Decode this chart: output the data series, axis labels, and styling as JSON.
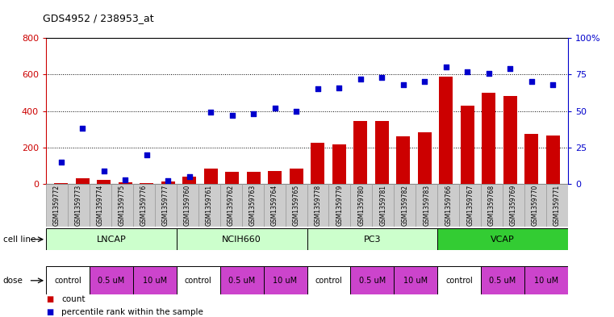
{
  "title": "GDS4952 / 238953_at",
  "samples": [
    "GSM1359772",
    "GSM1359773",
    "GSM1359774",
    "GSM1359775",
    "GSM1359776",
    "GSM1359777",
    "GSM1359760",
    "GSM1359761",
    "GSM1359762",
    "GSM1359763",
    "GSM1359764",
    "GSM1359765",
    "GSM1359778",
    "GSM1359779",
    "GSM1359780",
    "GSM1359781",
    "GSM1359782",
    "GSM1359783",
    "GSM1359766",
    "GSM1359767",
    "GSM1359768",
    "GSM1359769",
    "GSM1359770",
    "GSM1359771"
  ],
  "counts": [
    5,
    30,
    20,
    10,
    5,
    15,
    40,
    85,
    65,
    65,
    70,
    85,
    225,
    215,
    345,
    345,
    260,
    285,
    590,
    430,
    500,
    480,
    275,
    265
  ],
  "percentile_ranks": [
    15,
    38,
    9,
    3,
    20,
    2,
    5,
    49,
    47,
    48,
    52,
    50,
    65,
    66,
    72,
    73,
    68,
    70,
    80,
    77,
    76,
    79,
    70,
    68
  ],
  "cell_line_groups": [
    {
      "name": "LNCAP",
      "start": 0,
      "end": 6,
      "color": "#ccffcc"
    },
    {
      "name": "NCIH660",
      "start": 6,
      "end": 12,
      "color": "#ccffcc"
    },
    {
      "name": "PC3",
      "start": 12,
      "end": 18,
      "color": "#ccffcc"
    },
    {
      "name": "VCAP",
      "start": 18,
      "end": 24,
      "color": "#33cc33"
    }
  ],
  "dose_blocks": [
    {
      "label": "control",
      "start": 0,
      "end": 2,
      "color": "#ffffff"
    },
    {
      "label": "0.5 uM",
      "start": 2,
      "end": 4,
      "color": "#cc44cc"
    },
    {
      "label": "10 uM",
      "start": 4,
      "end": 6,
      "color": "#cc44cc"
    },
    {
      "label": "control",
      "start": 6,
      "end": 8,
      "color": "#ffffff"
    },
    {
      "label": "0.5 uM",
      "start": 8,
      "end": 10,
      "color": "#cc44cc"
    },
    {
      "label": "10 uM",
      "start": 10,
      "end": 12,
      "color": "#cc44cc"
    },
    {
      "label": "control",
      "start": 12,
      "end": 14,
      "color": "#ffffff"
    },
    {
      "label": "0.5 uM",
      "start": 14,
      "end": 16,
      "color": "#cc44cc"
    },
    {
      "label": "10 uM",
      "start": 16,
      "end": 18,
      "color": "#cc44cc"
    },
    {
      "label": "control",
      "start": 18,
      "end": 20,
      "color": "#ffffff"
    },
    {
      "label": "0.5 uM",
      "start": 20,
      "end": 22,
      "color": "#cc44cc"
    },
    {
      "label": "10 uM",
      "start": 22,
      "end": 24,
      "color": "#cc44cc"
    }
  ],
  "bar_color": "#cc0000",
  "scatter_color": "#0000cc",
  "ylim_left": [
    0,
    800
  ],
  "ylim_right": [
    0,
    100
  ],
  "yticks_left": [
    0,
    200,
    400,
    600,
    800
  ],
  "yticks_right": [
    0,
    25,
    50,
    75,
    100
  ],
  "ytick_labels_left": [
    "0",
    "200",
    "400",
    "600",
    "800"
  ],
  "ytick_labels_right": [
    "0",
    "25",
    "50",
    "75",
    "100%"
  ],
  "bg_color": "#ffffff",
  "label_color_left": "#cc0000",
  "label_color_right": "#0000cc",
  "grid_yticks": [
    200,
    400,
    600
  ],
  "label_cell_line": "cell line",
  "label_dose": "dose",
  "legend_count": "count",
  "legend_pct": "percentile rank within the sample",
  "sample_bg_color": "#cccccc"
}
